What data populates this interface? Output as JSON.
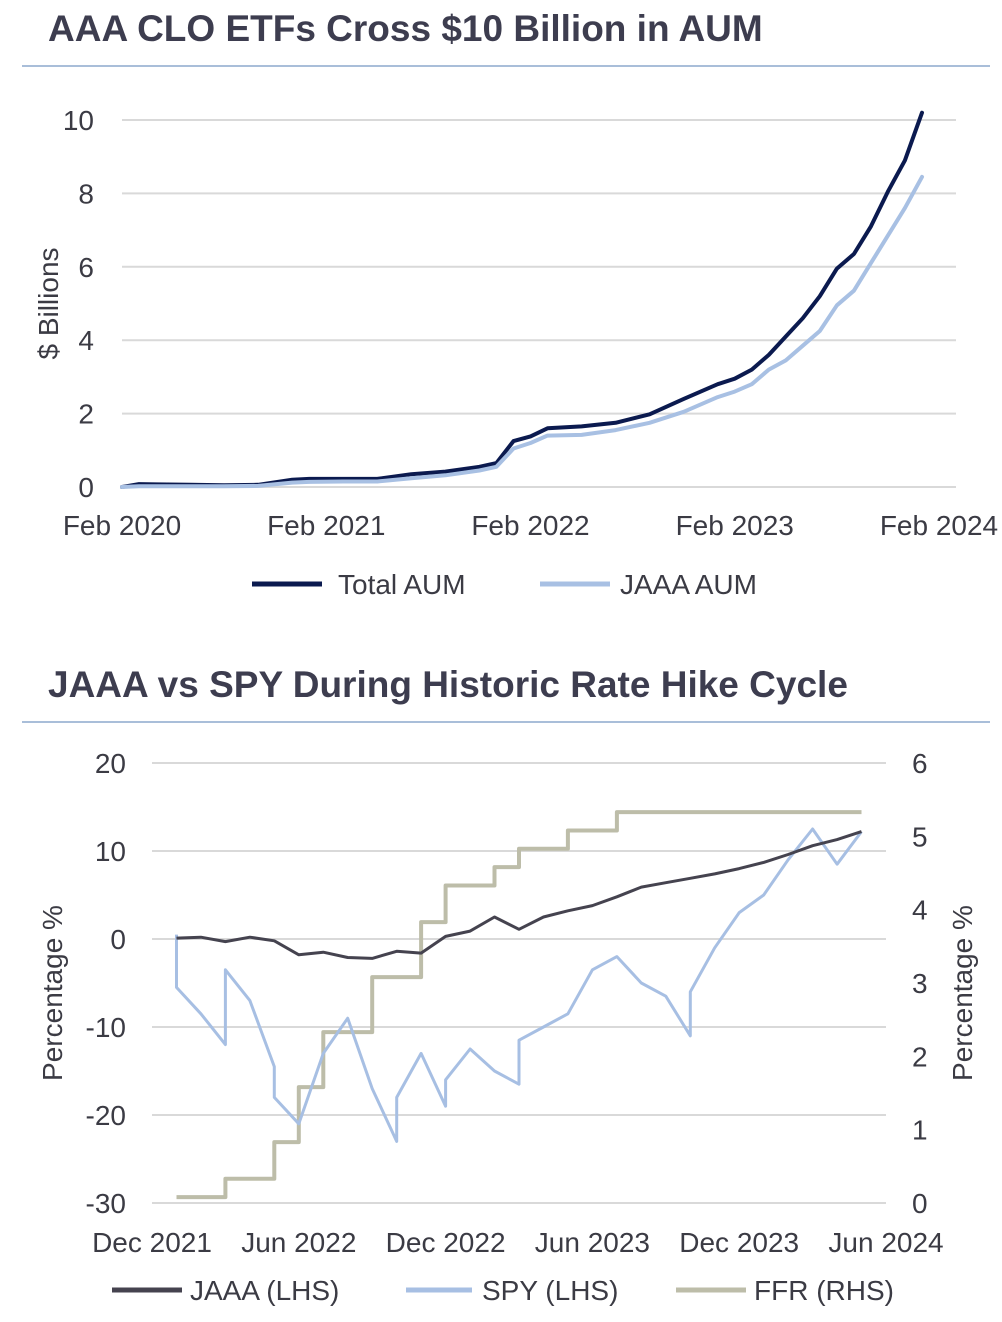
{
  "chart_data": [
    {
      "type": "line",
      "title": "AAA CLO ETFs Cross $10 Billion in AUM",
      "ylabel": "$ Billions",
      "xlabel": "",
      "ylim": [
        0,
        10
      ],
      "yticks": [
        "0",
        "2",
        "4",
        "6",
        "8",
        "10"
      ],
      "xlim": [
        "2020-02",
        "2024-03"
      ],
      "xtick_labels": [
        "Feb 2020",
        "Feb 2021",
        "Feb 2022",
        "Feb 2023",
        "Feb 2024"
      ],
      "grid": true,
      "legend_position": "bottom",
      "x": [
        "2020-02",
        "2020-03",
        "2020-04",
        "2020-06",
        "2020-08",
        "2020-10",
        "2020-12",
        "2021-01",
        "2021-03",
        "2021-05",
        "2021-07",
        "2021-09",
        "2021-11",
        "2021-12",
        "2022-01",
        "2022-02",
        "2022-03",
        "2022-05",
        "2022-07",
        "2022-09",
        "2022-11",
        "2023-01",
        "2023-02",
        "2023-03",
        "2023-04",
        "2023-05",
        "2023-06",
        "2023-07",
        "2023-08",
        "2023-09",
        "2023-10",
        "2023-11",
        "2023-12",
        "2024-01",
        "2024-02",
        "2024-03"
      ],
      "series": [
        {
          "name": "Total AUM",
          "color": "#0b1a4f",
          "values": [
            0.0,
            0.08,
            0.07,
            0.06,
            0.05,
            0.06,
            0.2,
            0.22,
            0.22,
            0.22,
            0.35,
            0.42,
            0.55,
            0.65,
            1.25,
            1.38,
            1.6,
            1.65,
            1.75,
            1.98,
            2.4,
            2.8,
            2.95,
            3.2,
            3.6,
            4.1,
            4.6,
            5.2,
            5.95,
            6.35,
            7.1,
            8.05,
            8.9,
            10.2,
            null,
            null
          ]
        },
        {
          "name": "JAAA AUM",
          "color": "#a8c0e3",
          "values": [
            0.0,
            0.02,
            0.02,
            0.02,
            0.02,
            0.03,
            0.12,
            0.14,
            0.15,
            0.15,
            0.24,
            0.32,
            0.45,
            0.55,
            1.05,
            1.2,
            1.4,
            1.42,
            1.55,
            1.75,
            2.05,
            2.45,
            2.6,
            2.8,
            3.2,
            3.45,
            3.85,
            4.25,
            4.95,
            5.35,
            6.1,
            6.85,
            7.6,
            8.45,
            null,
            null
          ]
        }
      ]
    },
    {
      "type": "line",
      "title": "JAAA vs SPY During Historic Rate Hike Cycle",
      "ylabel": "Percentage %",
      "y2label": "Percentage %",
      "xlabel": "",
      "ylim": [
        -30,
        20
      ],
      "y2lim": [
        0,
        6
      ],
      "yticks": [
        "-30",
        "-20",
        "-10",
        "0",
        "10",
        "20"
      ],
      "y2ticks": [
        "0",
        "1",
        "2",
        "3",
        "4",
        "5",
        "6"
      ],
      "xlim": [
        "2021-12",
        "2024-06"
      ],
      "xtick_labels": [
        "Dec 2021",
        "Jun 2022",
        "Dec 2022",
        "Jun 2023",
        "Dec 2023",
        "Jun 2024"
      ],
      "grid": true,
      "legend_position": "bottom",
      "series": [
        {
          "name": "JAAA (LHS)",
          "axis": "left",
          "color": "#45434f",
          "x": [
            "2022-01",
            "2022-02",
            "2022-03",
            "2022-04",
            "2022-05",
            "2022-06",
            "2022-07",
            "2022-08",
            "2022-09",
            "2022-10",
            "2022-11",
            "2022-12",
            "2023-01",
            "2023-02",
            "2023-03",
            "2023-04",
            "2023-05",
            "2023-06",
            "2023-07",
            "2023-08",
            "2023-09",
            "2023-10",
            "2023-11",
            "2023-12",
            "2024-01",
            "2024-02",
            "2024-03",
            "2024-04",
            "2024-05"
          ],
          "values": [
            0.1,
            0.2,
            -0.3,
            0.2,
            -0.2,
            -1.8,
            -1.5,
            -2.1,
            -2.2,
            -1.4,
            -1.6,
            0.3,
            0.9,
            2.5,
            1.1,
            2.5,
            3.2,
            3.8,
            4.8,
            5.9,
            6.4,
            6.9,
            7.4,
            8.0,
            8.7,
            9.6,
            10.6,
            11.3,
            12.2
          ]
        },
        {
          "name": "SPY (LHS)",
          "axis": "left",
          "color": "#a7bfe3",
          "x": [
            "2022-01",
            "2022-01",
            "2022-02",
            "2022-03",
            "2022-03",
            "2022-04",
            "2022-05",
            "2022-05",
            "2022-06",
            "2022-07",
            "2022-08",
            "2022-09",
            "2022-10",
            "2022-10",
            "2022-11",
            "2022-12",
            "2022-12",
            "2023-01",
            "2023-02",
            "2023-03",
            "2023-03",
            "2023-04",
            "2023-05",
            "2023-06",
            "2023-07",
            "2023-08",
            "2023-09",
            "2023-10",
            "2023-10",
            "2023-11",
            "2023-12",
            "2024-01",
            "2024-02",
            "2024-03",
            "2024-04",
            "2024-05"
          ],
          "values": [
            0.5,
            -5.5,
            -8.5,
            -12.0,
            -3.5,
            -7.0,
            -14.5,
            -18.0,
            -21.0,
            -13.0,
            -9.0,
            -17.0,
            -23.0,
            -18.0,
            -13.0,
            -19.0,
            -16.0,
            -12.5,
            -15.0,
            -16.5,
            -11.5,
            -10.0,
            -8.5,
            -3.5,
            -2.0,
            -5.0,
            -6.5,
            -11.0,
            -6.0,
            -1.0,
            3.0,
            5.0,
            9.0,
            12.5,
            8.5,
            12.2
          ]
        },
        {
          "name": "FFR (RHS)",
          "axis": "right",
          "color": "#bdbda9",
          "step": true,
          "x": [
            "2022-01",
            "2022-03",
            "2022-05",
            "2022-06",
            "2022-07",
            "2022-09",
            "2022-11",
            "2022-12",
            "2023-02",
            "2023-03",
            "2023-05",
            "2023-07",
            "2024-05"
          ],
          "values": [
            0.08,
            0.33,
            0.83,
            1.58,
            2.33,
            3.08,
            3.83,
            4.33,
            4.58,
            4.83,
            5.08,
            5.33,
            5.33
          ]
        }
      ]
    }
  ]
}
